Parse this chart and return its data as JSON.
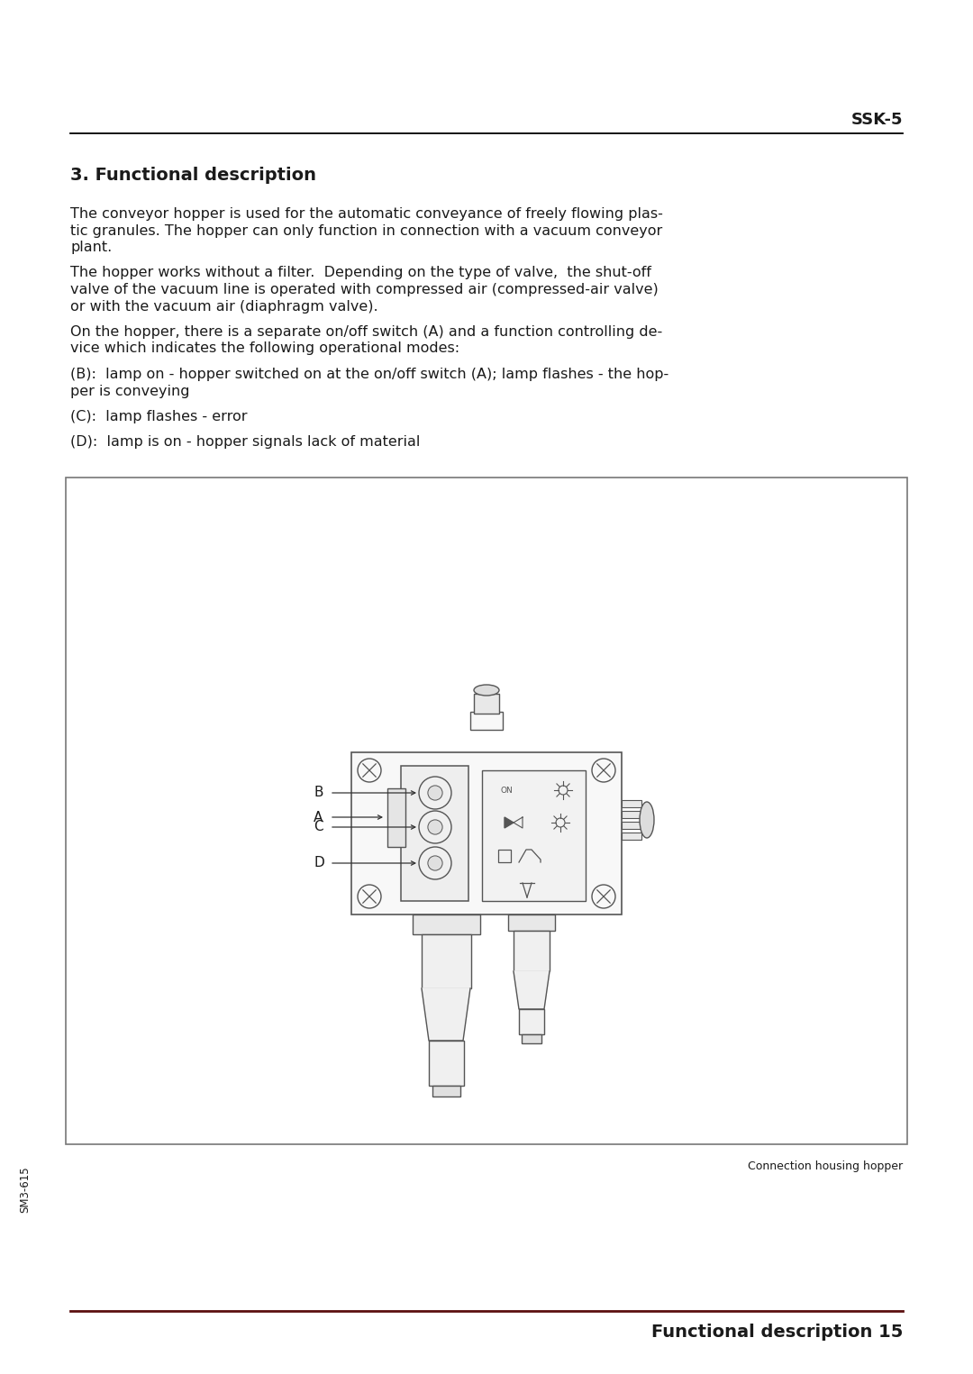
{
  "bg_color": "#ffffff",
  "text_color": "#1a1a1a",
  "header_text": "SSK-5",
  "section_title": "3. Functional description",
  "para1_lines": [
    "The conveyor hopper is used for the automatic conveyance of freely flowing plas-",
    "tic granules. The hopper can only function in connection with a vacuum conveyor",
    "plant."
  ],
  "para2_lines": [
    "The hopper works without a filter.  Depending on the type of valve,  the shut-off",
    "valve of the vacuum line is operated with compressed air (compressed-air valve)",
    "or with the vacuum air (diaphragm valve)."
  ],
  "para3_lines": [
    "On the hopper, there is a separate on/off switch (A) and a function controlling de-",
    "vice which indicates the following operational modes:"
  ],
  "item_b_lines": [
    "(B):  lamp on - hopper switched on at the on/off switch (A); lamp flashes - the hop-",
    "per is conveying"
  ],
  "item_c": "(C):  lamp flashes - error",
  "item_d": "(D):  lamp is on - hopper signals lack of material",
  "caption": "Connection housing hopper",
  "footer_left": "SM3-615",
  "footer_right": "Functional description 15",
  "line_color": "#5c1010",
  "header_line_color": "#000000",
  "diagram_line_color": "#555555",
  "diagram_fill": "#f8f8f8"
}
